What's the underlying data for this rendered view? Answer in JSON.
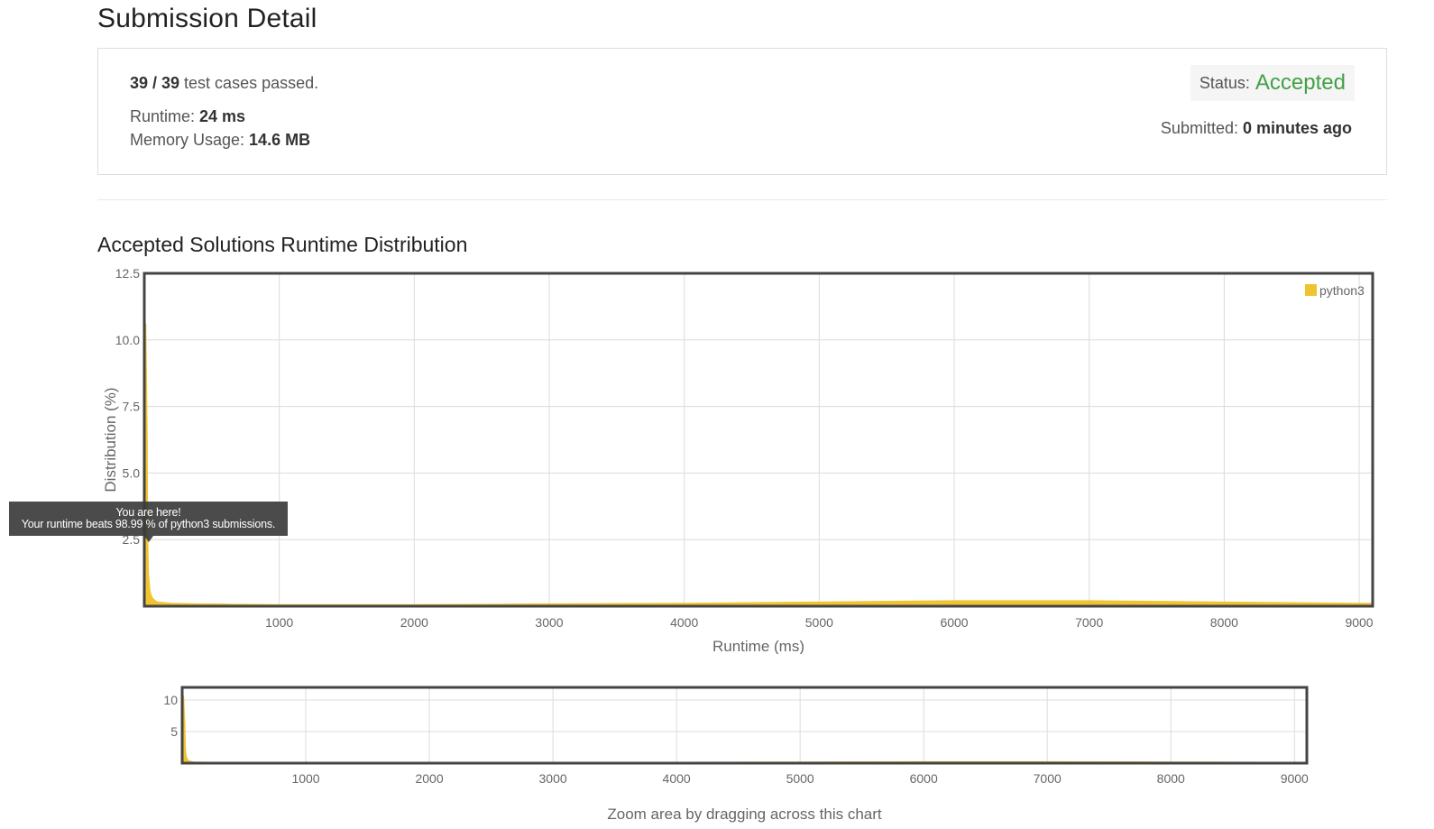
{
  "page": {
    "title": "Submission Detail"
  },
  "summary": {
    "passed": "39 / 39",
    "passed_suffix": " test cases passed.",
    "runtime_label": "Runtime: ",
    "runtime_value": "24 ms",
    "memory_label": "Memory Usage: ",
    "memory_value": "14.6 MB",
    "status_label": "Status:",
    "status_value": "Accepted",
    "submitted_label": "Submitted: ",
    "submitted_value": "0 minutes ago"
  },
  "section": {
    "title": "Accepted Solutions Runtime Distribution"
  },
  "tooltip": {
    "line1": "You are here!",
    "line2": "Your runtime beats 98.99 % of python3 submissions."
  },
  "zoom_hint": "Zoom area by dragging across this chart",
  "colors": {
    "accent": "#43a047",
    "series": "#f0c330",
    "tooltip_bg": "#3c3c3c"
  },
  "chart_data": [
    {
      "type": "area",
      "title": "",
      "xlabel": "Runtime (ms)",
      "ylabel": "Distribution (%)",
      "xlim": [
        0,
        9100
      ],
      "ylim": [
        0,
        12.5
      ],
      "x_ticks": [
        1000,
        2000,
        3000,
        4000,
        5000,
        6000,
        7000,
        8000,
        9000
      ],
      "y_ticks": [
        2.5,
        5.0,
        7.5,
        10.0,
        12.5
      ],
      "y_tick_labels": [
        "2.5",
        "5.0",
        "7.5",
        "10.0",
        "12.5"
      ],
      "legend": "top-right",
      "grid": true,
      "series": [
        {
          "name": "python3",
          "x": [
            0,
            10,
            20,
            24,
            30,
            40,
            50,
            60,
            80,
            100,
            200,
            400,
            600,
            1000,
            2000,
            3000,
            4000,
            5000,
            6000,
            7000,
            8000,
            9000,
            9100
          ],
          "values": [
            0,
            10.6,
            6.5,
            2.6,
            1.2,
            0.6,
            0.4,
            0.3,
            0.2,
            0.15,
            0.1,
            0.08,
            0.07,
            0.05,
            0.05,
            0.08,
            0.1,
            0.15,
            0.2,
            0.2,
            0.15,
            0.1,
            0.1
          ]
        }
      ],
      "marker": {
        "x": 24,
        "label": "You are here!"
      }
    },
    {
      "type": "area",
      "title": "",
      "xlabel": "Zoom area by dragging across this chart",
      "ylabel": "",
      "xlim": [
        0,
        9100
      ],
      "ylim": [
        0,
        12
      ],
      "x_ticks": [
        1000,
        2000,
        3000,
        4000,
        5000,
        6000,
        7000,
        8000,
        9000
      ],
      "y_ticks": [
        5,
        10
      ],
      "y_tick_labels": [
        "5",
        "10"
      ],
      "grid": true,
      "series": [
        {
          "name": "python3",
          "x": [
            0,
            10,
            20,
            24,
            30,
            40,
            50,
            60,
            80,
            100,
            200,
            400,
            600,
            1000,
            2000,
            3000,
            4000,
            5000,
            6000,
            7000,
            8000,
            9000,
            9100
          ],
          "values": [
            0,
            10.6,
            6.5,
            2.6,
            1.2,
            0.6,
            0.4,
            0.3,
            0.2,
            0.15,
            0.1,
            0.08,
            0.07,
            0.05,
            0.05,
            0.08,
            0.1,
            0.15,
            0.2,
            0.2,
            0.15,
            0.1,
            0.1
          ]
        }
      ]
    }
  ]
}
